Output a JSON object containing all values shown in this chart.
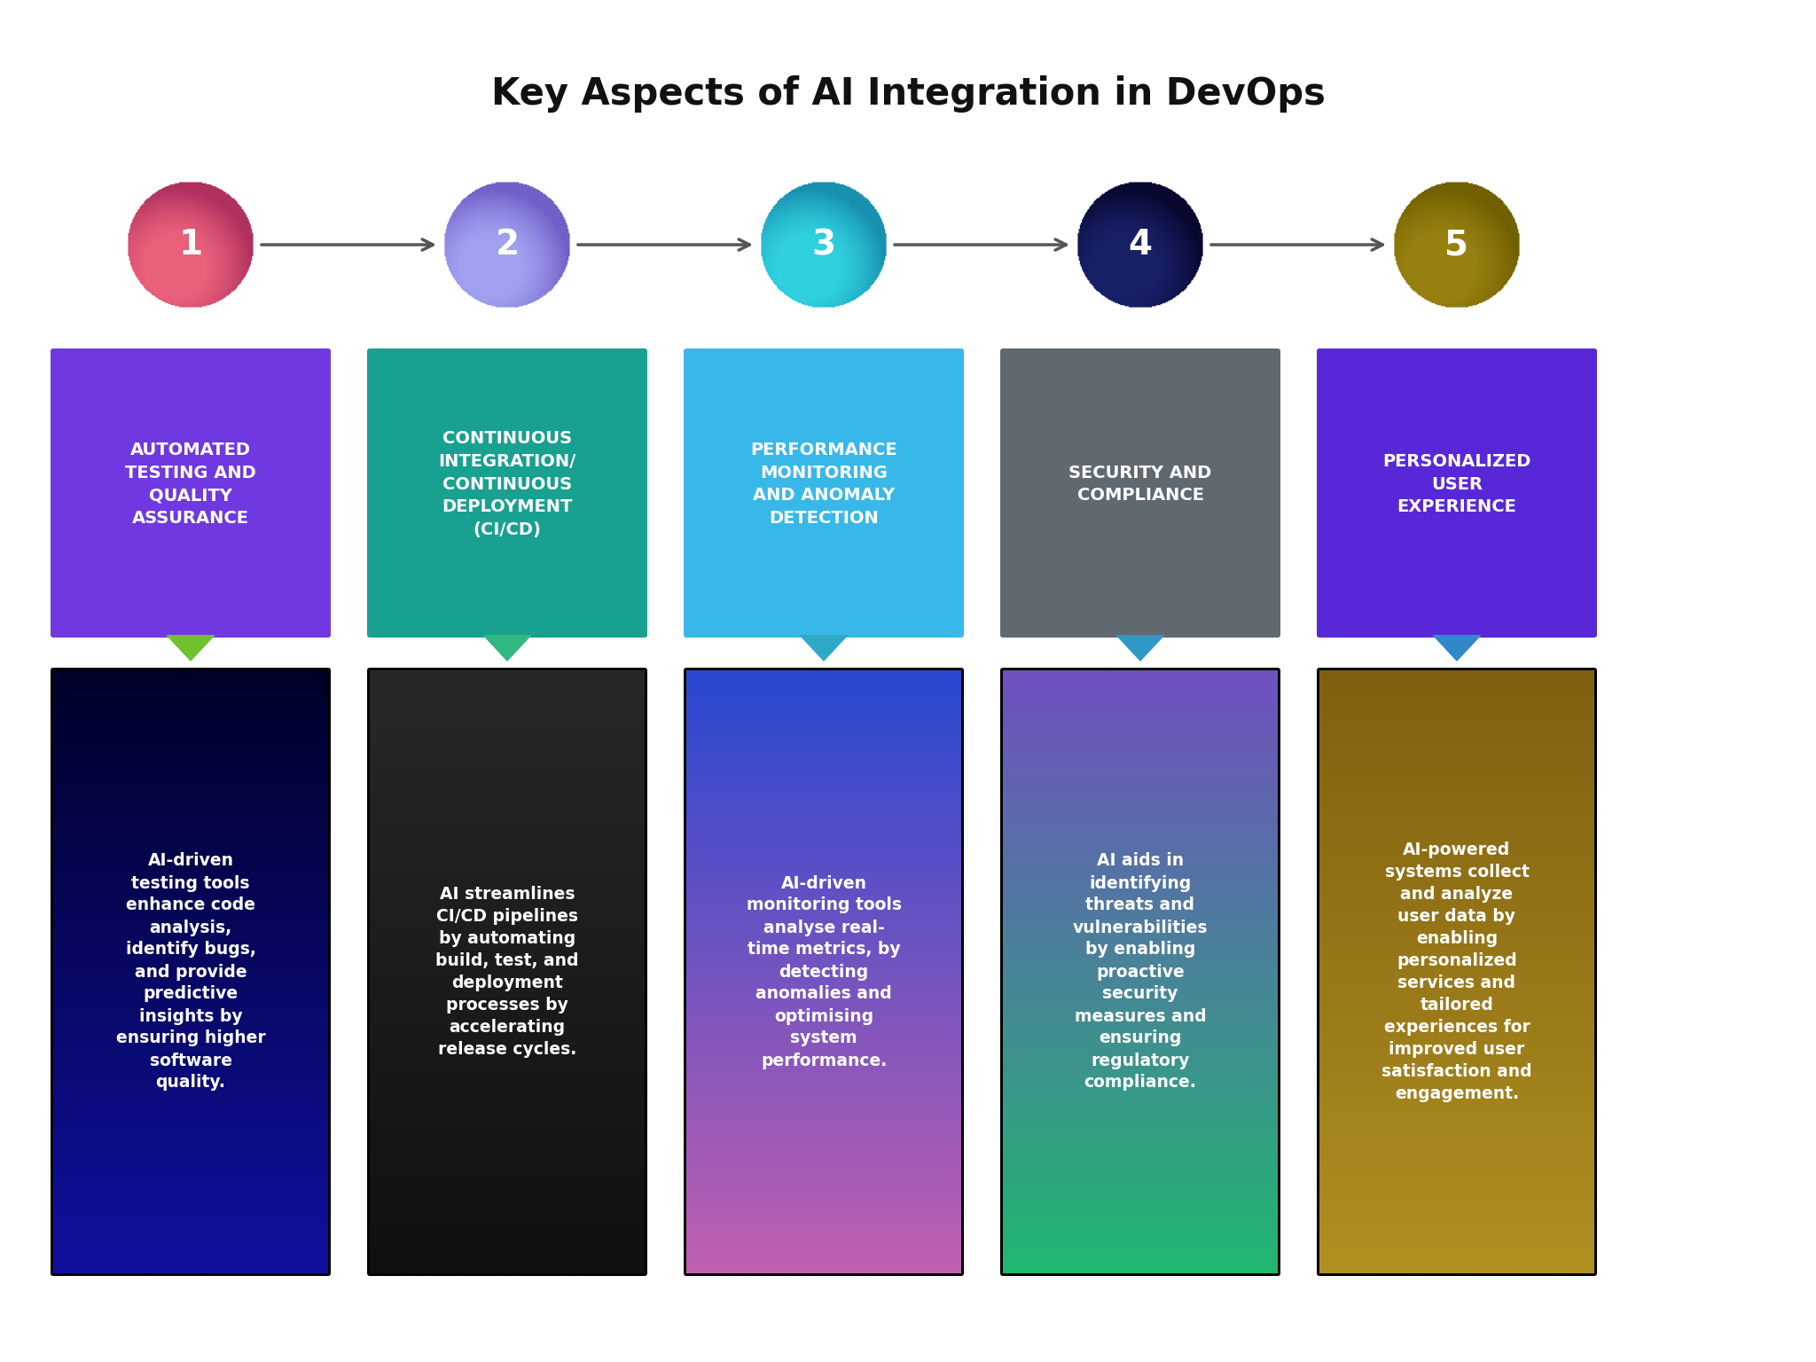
{
  "title": "Key Aspects of AI Integration in DevOps",
  "title_fontsize": 30,
  "background_color": "#ffffff",
  "circles": [
    {
      "num": "1",
      "color1": "#e8607a",
      "color2": "#b03060"
    },
    {
      "num": "2",
      "color1": "#a0a0f0",
      "color2": "#7060c8"
    },
    {
      "num": "3",
      "color1": "#30d0e0",
      "color2": "#1890b0"
    },
    {
      "num": "4",
      "color1": "#182068",
      "color2": "#080830"
    },
    {
      "num": "5",
      "color1": "#988010",
      "color2": "#706000"
    }
  ],
  "top_boxes": [
    {
      "label": "AUTOMATED\nTESTING AND\nQUALITY\nASSURANCE",
      "color": "#7038e0"
    },
    {
      "label": "CONTINUOUS\nINTEGRATION/\nCONTINUOUS\nDEPLOYMENT\n(CI/CD)",
      "color": "#18a090"
    },
    {
      "label": "PERFORMANCE\nMONITORING\nAND ANOMALY\nDETECTION",
      "color": "#38b8e8"
    },
    {
      "label": "SECURITY AND\nCOMPLIANCE",
      "color": "#606870"
    },
    {
      "label": "PERSONALIZED\nUSER\nEXPERIENCE",
      "color": "#5828d8"
    }
  ],
  "arrow_colors": [
    "#70c030",
    "#30b880",
    "#30a8c8",
    "#3098c8",
    "#3088c8"
  ],
  "bottom_boxes": [
    {
      "text": "AI-driven\ntesting tools\nenhance code\nanalysis,\nidentify bugs,\nand provide\npredictive\ninsights by\nensuring higher\nsoftware\nquality.",
      "grad_top": "#000028",
      "grad_bot": "#1010a0"
    },
    {
      "text": "AI streamlines\nCI/CD pipelines\nby automating\nbuild, test, and\ndeployment\nprocesses by\naccelerating\nrelease cycles.",
      "grad_top": "#282828",
      "grad_bot": "#101010"
    },
    {
      "text": "AI-driven\nmonitoring tools\nanalyse real-\ntime metrics, by\ndetecting\nanomalies and\noptimising\nsystem\nperformance.",
      "grad_top": "#2848d0",
      "grad_bot": "#c060b0"
    },
    {
      "text": "AI aids in\nidentifying\nthreats and\nvulnerabilities\nby enabling\nproactive\nsecurity\nmeasures and\nensuring\nregulatory\ncompliance.",
      "grad_top": "#7050c0",
      "grad_bot": "#20b870"
    },
    {
      "text": "AI-powered\nsystems collect\nand analyze\nuser data by\nenabling\npersonalized\nservices and\ntailored\nexperiences for\nimproved user\nsatisfaction and\nengagement.",
      "grad_top": "#806010",
      "grad_bot": "#b09020"
    }
  ]
}
